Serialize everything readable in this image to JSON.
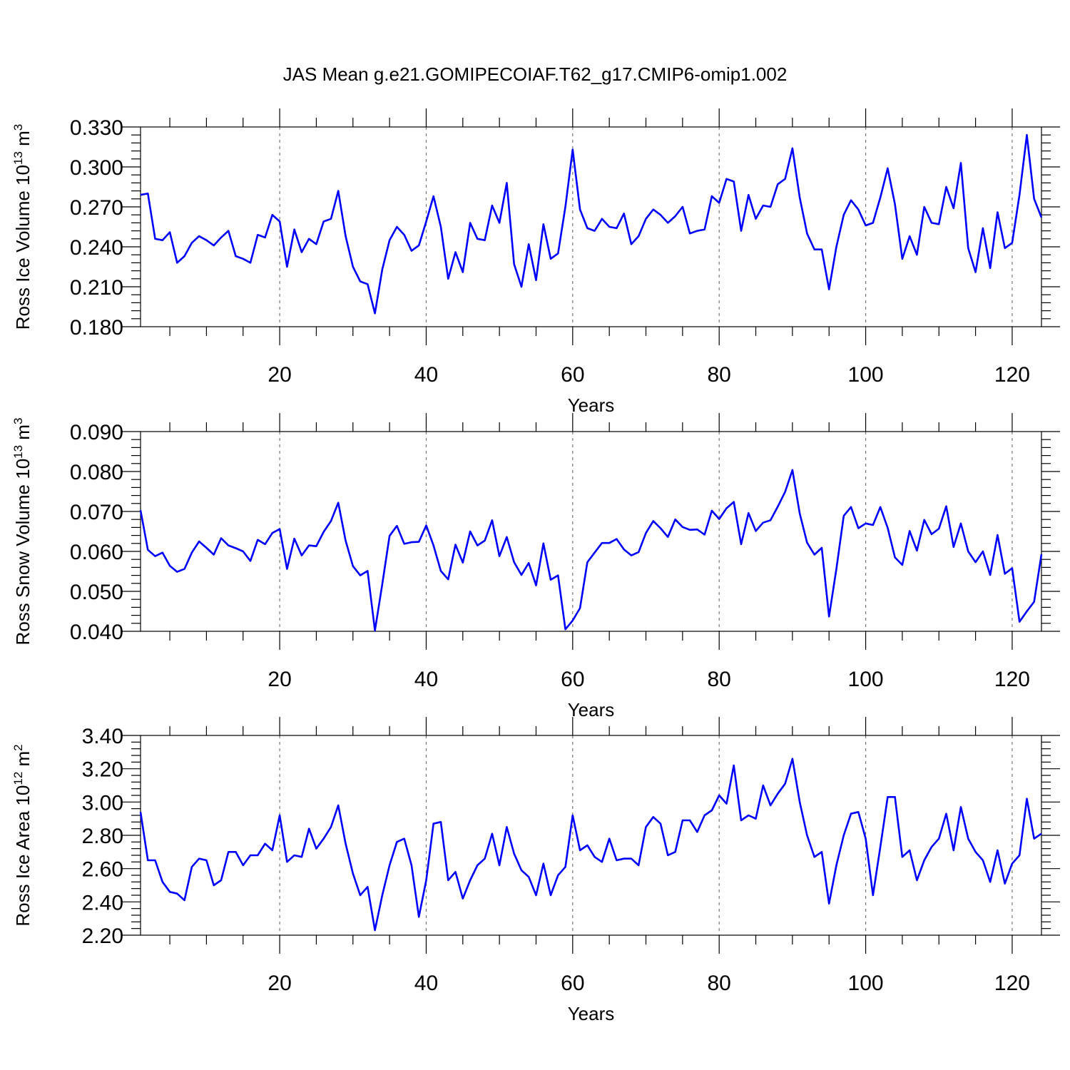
{
  "figure": {
    "title": "JAS Mean g.e21.GOMIPECOIAF.T62_g17.CMIP6-omip1.002"
  },
  "chart_data": [
    {
      "type": "line",
      "ylabel": "Ross Ice Volume 10",
      "ylabel_sup": "13",
      "ylabel_unit": " m",
      "ylabel_unit_sup": "3",
      "xlabel": "Years",
      "xlim": [
        1,
        124
      ],
      "ylim": [
        0.18,
        0.33
      ],
      "x_ticks": [
        20,
        40,
        60,
        80,
        100,
        120
      ],
      "y_ticks": [
        "0.180",
        "0.210",
        "0.240",
        "0.270",
        "0.300",
        "0.330"
      ],
      "y_minor_step": 0.006,
      "series_color": "#0000ff",
      "grid": "dashed vertical at x ticks",
      "x": [
        1,
        2,
        3,
        4,
        5,
        6,
        7,
        8,
        9,
        10,
        11,
        12,
        13,
        14,
        15,
        16,
        17,
        18,
        19,
        20,
        21,
        22,
        23,
        24,
        25,
        26,
        27,
        28,
        29,
        30,
        31,
        32,
        33,
        34,
        35,
        36,
        37,
        38,
        39,
        40,
        41,
        42,
        43,
        44,
        45,
        46,
        47,
        48,
        49,
        50,
        51,
        52,
        53,
        54,
        55,
        56,
        57,
        58,
        59,
        60,
        61,
        62,
        63,
        64,
        65,
        66,
        67,
        68,
        69,
        70,
        71,
        72,
        73,
        74,
        75,
        76,
        77,
        78,
        79,
        80,
        81,
        82,
        83,
        84,
        85,
        86,
        87,
        88,
        89,
        90,
        91,
        92,
        93,
        94,
        95,
        96,
        97,
        98,
        99,
        100,
        101,
        102,
        103,
        104,
        105,
        106,
        107,
        108,
        109,
        110,
        111,
        112,
        113,
        114,
        115,
        116,
        117,
        118,
        119,
        120,
        121,
        122,
        123,
        124
      ],
      "values": [
        0.279,
        0.28,
        0.246,
        0.245,
        0.251,
        0.228,
        0.233,
        0.243,
        0.248,
        0.245,
        0.241,
        0.247,
        0.252,
        0.233,
        0.231,
        0.228,
        0.249,
        0.247,
        0.264,
        0.259,
        0.225,
        0.253,
        0.236,
        0.246,
        0.242,
        0.259,
        0.261,
        0.282,
        0.248,
        0.225,
        0.214,
        0.212,
        0.19,
        0.223,
        0.245,
        0.255,
        0.249,
        0.237,
        0.241,
        0.259,
        0.278,
        0.255,
        0.216,
        0.236,
        0.221,
        0.258,
        0.246,
        0.245,
        0.271,
        0.258,
        0.288,
        0.227,
        0.21,
        0.242,
        0.215,
        0.257,
        0.231,
        0.235,
        0.27,
        0.313,
        0.268,
        0.254,
        0.252,
        0.261,
        0.255,
        0.254,
        0.265,
        0.242,
        0.248,
        0.261,
        0.268,
        0.264,
        0.258,
        0.263,
        0.27,
        0.25,
        0.252,
        0.253,
        0.278,
        0.273,
        0.291,
        0.289,
        0.252,
        0.279,
        0.261,
        0.271,
        0.27,
        0.287,
        0.291,
        0.314,
        0.277,
        0.25,
        0.238,
        0.238,
        0.208,
        0.24,
        0.264,
        0.275,
        0.268,
        0.256,
        0.258,
        0.277,
        0.299,
        0.272,
        0.231,
        0.248,
        0.234,
        0.27,
        0.258,
        0.257,
        0.285,
        0.269,
        0.303,
        0.239,
        0.221,
        0.254,
        0.224,
        0.266,
        0.239,
        0.243,
        0.279,
        0.324,
        0.276,
        0.262
      ]
    },
    {
      "type": "line",
      "ylabel": "Ross Snow Volume 10",
      "ylabel_sup": "13",
      "ylabel_unit": " m",
      "ylabel_unit_sup": "3",
      "xlabel": "Years",
      "xlim": [
        1,
        124
      ],
      "ylim": [
        0.04,
        0.09
      ],
      "x_ticks": [
        20,
        40,
        60,
        80,
        100,
        120
      ],
      "y_ticks": [
        "0.040",
        "0.050",
        "0.060",
        "0.070",
        "0.080",
        "0.090"
      ],
      "y_minor_step": 0.002,
      "series_color": "#0000ff",
      "grid": "dashed vertical at x ticks",
      "x": [
        1,
        2,
        3,
        4,
        5,
        6,
        7,
        8,
        9,
        10,
        11,
        12,
        13,
        14,
        15,
        16,
        17,
        18,
        19,
        20,
        21,
        22,
        23,
        24,
        25,
        26,
        27,
        28,
        29,
        30,
        31,
        32,
        33,
        34,
        35,
        36,
        37,
        38,
        39,
        40,
        41,
        42,
        43,
        44,
        45,
        46,
        47,
        48,
        49,
        50,
        51,
        52,
        53,
        54,
        55,
        56,
        57,
        58,
        59,
        60,
        61,
        62,
        63,
        64,
        65,
        66,
        67,
        68,
        69,
        70,
        71,
        72,
        73,
        74,
        75,
        76,
        77,
        78,
        79,
        80,
        81,
        82,
        83,
        84,
        85,
        86,
        87,
        88,
        89,
        90,
        91,
        92,
        93,
        94,
        95,
        96,
        97,
        98,
        99,
        100,
        101,
        102,
        103,
        104,
        105,
        106,
        107,
        108,
        109,
        110,
        111,
        112,
        113,
        114,
        115,
        116,
        117,
        118,
        119,
        120,
        121,
        122,
        123,
        124
      ],
      "values": [
        0.0703,
        0.0604,
        0.0588,
        0.0597,
        0.0564,
        0.0549,
        0.0556,
        0.0597,
        0.0625,
        0.0609,
        0.0592,
        0.0633,
        0.0615,
        0.0608,
        0.06,
        0.0576,
        0.0629,
        0.0618,
        0.0646,
        0.0656,
        0.0556,
        0.0632,
        0.059,
        0.0615,
        0.0613,
        0.0649,
        0.0676,
        0.0722,
        0.0627,
        0.0563,
        0.054,
        0.0551,
        0.0402,
        0.0518,
        0.0639,
        0.0664,
        0.0619,
        0.0623,
        0.0624,
        0.0665,
        0.0615,
        0.0551,
        0.053,
        0.0617,
        0.0572,
        0.065,
        0.0615,
        0.0627,
        0.0678,
        0.0588,
        0.0636,
        0.0573,
        0.0541,
        0.0571,
        0.0515,
        0.062,
        0.0529,
        0.054,
        0.0405,
        0.0427,
        0.0458,
        0.0573,
        0.0597,
        0.0621,
        0.0621,
        0.0631,
        0.0605,
        0.059,
        0.0598,
        0.0646,
        0.0676,
        0.0658,
        0.0636,
        0.068,
        0.0661,
        0.0654,
        0.0655,
        0.0642,
        0.0702,
        0.0681,
        0.0708,
        0.0724,
        0.0618,
        0.0696,
        0.0651,
        0.0672,
        0.0678,
        0.0712,
        0.0749,
        0.0804,
        0.0695,
        0.0622,
        0.0592,
        0.0609,
        0.0437,
        0.0556,
        0.0689,
        0.0711,
        0.0658,
        0.067,
        0.0666,
        0.0711,
        0.0659,
        0.0585,
        0.0566,
        0.0651,
        0.0602,
        0.0679,
        0.0643,
        0.0657,
        0.0713,
        0.0611,
        0.067,
        0.06,
        0.0573,
        0.06,
        0.0541,
        0.0641,
        0.0544,
        0.0558,
        0.0424,
        0.045,
        0.0474,
        0.0593
      ]
    },
    {
      "type": "line",
      "ylabel": "Ross Ice Area 10",
      "ylabel_sup": "12",
      "ylabel_unit": " m",
      "ylabel_unit_sup": "2",
      "xlabel": "Years",
      "xlim": [
        1,
        124
      ],
      "ylim": [
        2.2,
        3.4
      ],
      "x_ticks": [
        20,
        40,
        60,
        80,
        100,
        120
      ],
      "y_ticks": [
        "2.20",
        "2.40",
        "2.60",
        "2.80",
        "3.00",
        "3.20",
        "3.40"
      ],
      "y_minor_step": 0.04,
      "series_color": "#0000ff",
      "grid": "dashed vertical at x ticks",
      "x": [
        1,
        2,
        3,
        4,
        5,
        6,
        7,
        8,
        9,
        10,
        11,
        12,
        13,
        14,
        15,
        16,
        17,
        18,
        19,
        20,
        21,
        22,
        23,
        24,
        25,
        26,
        27,
        28,
        29,
        30,
        31,
        32,
        33,
        34,
        35,
        36,
        37,
        38,
        39,
        40,
        41,
        42,
        43,
        44,
        45,
        46,
        47,
        48,
        49,
        50,
        51,
        52,
        53,
        54,
        55,
        56,
        57,
        58,
        59,
        60,
        61,
        62,
        63,
        64,
        65,
        66,
        67,
        68,
        69,
        70,
        71,
        72,
        73,
        74,
        75,
        76,
        77,
        78,
        79,
        80,
        81,
        82,
        83,
        84,
        85,
        86,
        87,
        88,
        89,
        90,
        91,
        92,
        93,
        94,
        95,
        96,
        97,
        98,
        99,
        100,
        101,
        102,
        103,
        104,
        105,
        106,
        107,
        108,
        109,
        110,
        111,
        112,
        113,
        114,
        115,
        116,
        117,
        118,
        119,
        120,
        121,
        122,
        123,
        124
      ],
      "values": [
        2.94,
        2.65,
        2.65,
        2.52,
        2.46,
        2.45,
        2.41,
        2.61,
        2.66,
        2.65,
        2.5,
        2.53,
        2.7,
        2.7,
        2.62,
        2.68,
        2.68,
        2.75,
        2.71,
        2.92,
        2.64,
        2.68,
        2.67,
        2.84,
        2.72,
        2.78,
        2.85,
        2.98,
        2.75,
        2.57,
        2.44,
        2.49,
        2.23,
        2.44,
        2.62,
        2.76,
        2.78,
        2.62,
        2.31,
        2.53,
        2.87,
        2.88,
        2.53,
        2.58,
        2.42,
        2.53,
        2.62,
        2.66,
        2.81,
        2.62,
        2.85,
        2.69,
        2.59,
        2.55,
        2.44,
        2.63,
        2.44,
        2.56,
        2.61,
        2.92,
        2.71,
        2.74,
        2.67,
        2.64,
        2.78,
        2.65,
        2.66,
        2.66,
        2.62,
        2.85,
        2.91,
        2.87,
        2.68,
        2.7,
        2.89,
        2.89,
        2.82,
        2.92,
        2.95,
        3.04,
        2.99,
        3.22,
        2.89,
        2.92,
        2.9,
        3.1,
        2.98,
        3.05,
        3.11,
        3.26,
        3.0,
        2.8,
        2.67,
        2.7,
        2.39,
        2.62,
        2.8,
        2.93,
        2.94,
        2.78,
        2.44,
        2.73,
        3.03,
        3.03,
        2.67,
        2.71,
        2.53,
        2.65,
        2.73,
        2.78,
        2.93,
        2.71,
        2.97,
        2.78,
        2.7,
        2.65,
        2.52,
        2.71,
        2.51,
        2.63,
        2.68,
        3.02,
        2.78,
        2.81
      ]
    }
  ]
}
